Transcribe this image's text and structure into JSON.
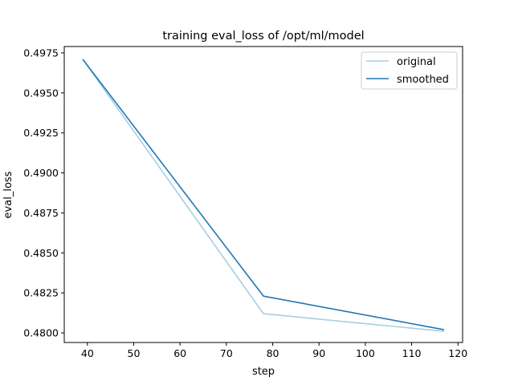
{
  "chart_data": {
    "type": "line",
    "title": "training eval_loss of /opt/ml/model",
    "xlabel": "step",
    "ylabel": "eval_loss",
    "xlim": [
      35,
      121
    ],
    "ylim": [
      0.4794,
      0.4979
    ],
    "xticks": [
      40,
      50,
      60,
      70,
      80,
      90,
      100,
      110,
      120
    ],
    "yticks": [
      0.48,
      0.4825,
      0.485,
      0.4875,
      0.49,
      0.4925,
      0.495,
      0.4975
    ],
    "ytick_labels": [
      "0.4800",
      "0.4825",
      "0.4850",
      "0.4875",
      "0.4900",
      "0.4925",
      "0.4950",
      "0.4975"
    ],
    "grid": false,
    "legend_position": "top-right",
    "series": [
      {
        "name": "original",
        "color": "#a6cee3",
        "x": [
          39,
          78,
          117
        ],
        "y": [
          0.4971,
          0.4812,
          0.4801
        ]
      },
      {
        "name": "smoothed",
        "color": "#1f78b4",
        "x": [
          39,
          78,
          117
        ],
        "y": [
          0.4971,
          0.4823,
          0.4802
        ]
      }
    ]
  }
}
